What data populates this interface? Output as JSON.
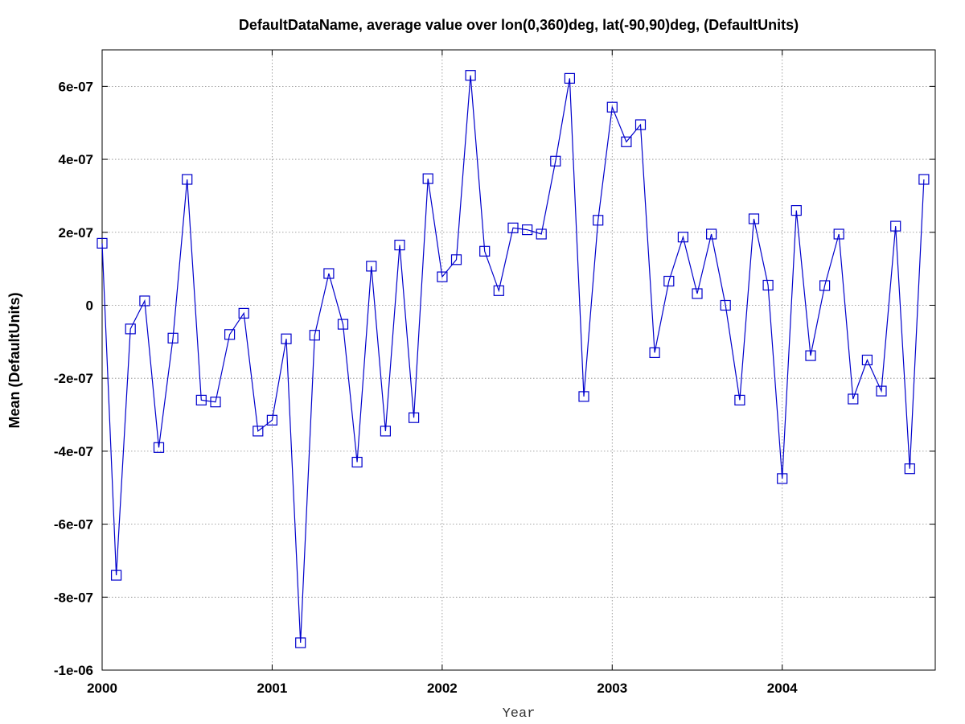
{
  "chart_data": {
    "type": "line",
    "title": "DefaultDataName, average value over lon(0,360)deg, lat(-90,90)deg, (DefaultUnits)",
    "xlabel": "Year",
    "ylabel": "Mean (DefaultUnits)",
    "xlim": [
      2000.0,
      2004.9
    ],
    "ylim": [
      -1e-06,
      7e-07
    ],
    "x_ticks": [
      {
        "value": 2000,
        "label": "2000"
      },
      {
        "value": 2001,
        "label": "2001"
      },
      {
        "value": 2002,
        "label": "2002"
      },
      {
        "value": 2003,
        "label": "2003"
      },
      {
        "value": 2004,
        "label": "2004"
      }
    ],
    "y_ticks": [
      {
        "value": 6e-07,
        "label": "6e-07"
      },
      {
        "value": 4e-07,
        "label": "4e-07"
      },
      {
        "value": 2e-07,
        "label": "2e-07"
      },
      {
        "value": 0,
        "label": "0"
      },
      {
        "value": -2e-07,
        "label": "-2e-07"
      },
      {
        "value": -4e-07,
        "label": "-4e-07"
      },
      {
        "value": -6e-07,
        "label": "-6e-07"
      },
      {
        "value": -8e-07,
        "label": "-8e-07"
      },
      {
        "value": -1e-06,
        "label": "-1e-06"
      }
    ],
    "grid": true,
    "marker": "open-square",
    "series": [
      {
        "color": "#0000cc",
        "points": [
          {
            "date": "2000-01",
            "value": 1.7e-07
          },
          {
            "date": "2000-02",
            "value": -7.4e-07
          },
          {
            "date": "2000-03",
            "value": -6.5e-08
          },
          {
            "date": "2000-04",
            "value": 1.2e-08
          },
          {
            "date": "2000-05",
            "value": -3.9e-07
          },
          {
            "date": "2000-06",
            "value": -9e-08
          },
          {
            "date": "2000-07",
            "value": 3.45e-07
          },
          {
            "date": "2000-08",
            "value": -2.6e-07
          },
          {
            "date": "2000-09",
            "value": -2.65e-07
          },
          {
            "date": "2000-10",
            "value": -8e-08
          },
          {
            "date": "2000-11",
            "value": -2.2e-08
          },
          {
            "date": "2000-12",
            "value": -3.45e-07
          },
          {
            "date": "2001-01",
            "value": -3.15e-07
          },
          {
            "date": "2001-02",
            "value": -9.2e-08
          },
          {
            "date": "2001-03",
            "value": -9.25e-07
          },
          {
            "date": "2001-04",
            "value": -8.2e-08
          },
          {
            "date": "2001-05",
            "value": 8.7e-08
          },
          {
            "date": "2001-06",
            "value": -5.2e-08
          },
          {
            "date": "2001-07",
            "value": -4.3e-07
          },
          {
            "date": "2001-08",
            "value": 1.07e-07
          },
          {
            "date": "2001-09",
            "value": -3.45e-07
          },
          {
            "date": "2001-10",
            "value": 1.65e-07
          },
          {
            "date": "2001-11",
            "value": -3.08e-07
          },
          {
            "date": "2001-12",
            "value": 3.47e-07
          },
          {
            "date": "2002-01",
            "value": 7.8e-08
          },
          {
            "date": "2002-02",
            "value": 1.25e-07
          },
          {
            "date": "2002-03",
            "value": 6.3e-07
          },
          {
            "date": "2002-04",
            "value": 1.48e-07
          },
          {
            "date": "2002-05",
            "value": 4e-08
          },
          {
            "date": "2002-06",
            "value": 2.12e-07
          },
          {
            "date": "2002-07",
            "value": 2.07e-07
          },
          {
            "date": "2002-08",
            "value": 1.95e-07
          },
          {
            "date": "2002-09",
            "value": 3.95e-07
          },
          {
            "date": "2002-10",
            "value": 6.22e-07
          },
          {
            "date": "2002-11",
            "value": -2.5e-07
          },
          {
            "date": "2002-12",
            "value": 2.33e-07
          },
          {
            "date": "2003-01",
            "value": 5.43e-07
          },
          {
            "date": "2003-02",
            "value": 4.48e-07
          },
          {
            "date": "2003-03",
            "value": 4.95e-07
          },
          {
            "date": "2003-04",
            "value": -1.3e-07
          },
          {
            "date": "2003-05",
            "value": 6.6e-08
          },
          {
            "date": "2003-06",
            "value": 1.87e-07
          },
          {
            "date": "2003-07",
            "value": 3.2e-08
          },
          {
            "date": "2003-08",
            "value": 1.95e-07
          },
          {
            "date": "2003-09",
            "value": 0.0
          },
          {
            "date": "2003-10",
            "value": -2.6e-07
          },
          {
            "date": "2003-11",
            "value": 2.37e-07
          },
          {
            "date": "2003-12",
            "value": 5.5e-08
          },
          {
            "date": "2004-01",
            "value": -4.75e-07
          },
          {
            "date": "2004-02",
            "value": 2.6e-07
          },
          {
            "date": "2004-03",
            "value": -1.38e-07
          },
          {
            "date": "2004-04",
            "value": 5.4e-08
          },
          {
            "date": "2004-05",
            "value": 1.95e-07
          },
          {
            "date": "2004-06",
            "value": -2.57e-07
          },
          {
            "date": "2004-07",
            "value": -1.5e-07
          },
          {
            "date": "2004-08",
            "value": -2.35e-07
          },
          {
            "date": "2004-09",
            "value": 2.17e-07
          },
          {
            "date": "2004-10",
            "value": -4.48e-07
          },
          {
            "date": "2004-11",
            "value": 3.45e-07
          }
        ]
      }
    ]
  }
}
